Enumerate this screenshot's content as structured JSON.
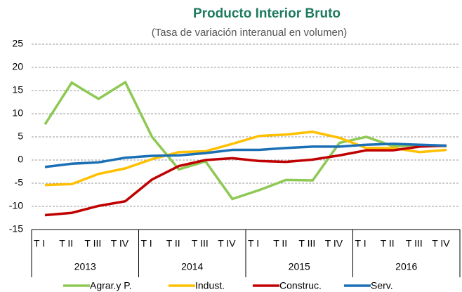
{
  "chart_data": {
    "type": "line",
    "title": "Producto Interior Bruto",
    "subtitle": "(Tasa de variación interanual en volumen)",
    "categories": [
      "T I",
      "T II",
      "T III",
      "T IV",
      "T I",
      "T II",
      "T III",
      "T IV",
      "T I",
      "T II",
      "T III",
      "T IV",
      "T I",
      "T II",
      "T III",
      "T IV"
    ],
    "groups": [
      "2013",
      "2014",
      "2015",
      "2016"
    ],
    "series": [
      {
        "name": "Agrar.y P.",
        "color": "#8dc953",
        "values": [
          7.7,
          16.7,
          13.2,
          16.8,
          5.0,
          -2.0,
          -0.3,
          -8.4,
          -6.5,
          -4.3,
          -4.4,
          3.7,
          5.0,
          3.0,
          3.2,
          3.0
        ]
      },
      {
        "name": "Indust.",
        "color": "#ffc000",
        "values": [
          -5.4,
          -5.2,
          -3.0,
          -1.8,
          0.2,
          1.7,
          1.9,
          3.5,
          5.2,
          5.5,
          6.1,
          4.8,
          2.6,
          2.6,
          1.7,
          2.2
        ]
      },
      {
        "name": "Construc.",
        "color": "#c00000",
        "values": [
          -11.9,
          -11.4,
          -9.9,
          -8.9,
          -4.2,
          -1.3,
          0.0,
          0.4,
          -0.2,
          -0.4,
          0.1,
          1.0,
          2.1,
          2.1,
          2.9,
          3.1
        ]
      },
      {
        "name": "Serv.",
        "color": "#1b6fb5",
        "values": [
          -1.5,
          -0.8,
          -0.5,
          0.5,
          0.9,
          1.0,
          1.5,
          2.2,
          2.2,
          2.6,
          2.9,
          2.9,
          3.3,
          3.5,
          3.3,
          3.1
        ]
      }
    ],
    "ylim": [
      -15,
      25
    ],
    "yticks": [
      -15,
      -10,
      -5,
      0,
      5,
      10,
      15,
      20,
      25
    ],
    "grid": true
  }
}
